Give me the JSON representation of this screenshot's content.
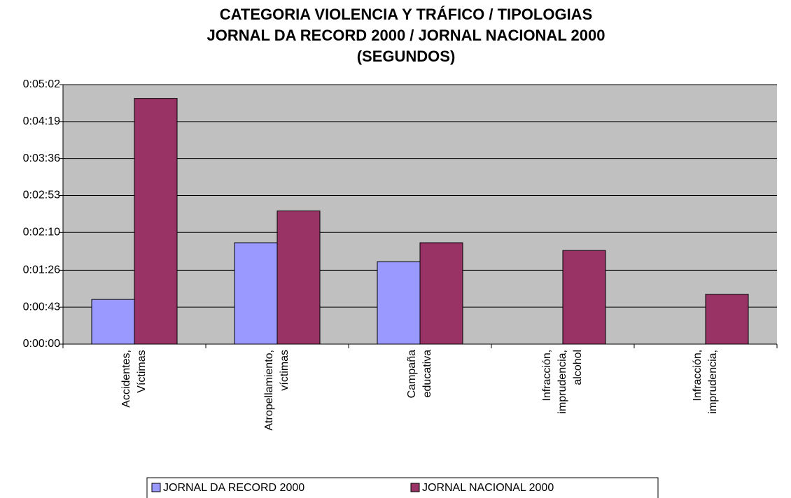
{
  "chart_data": {
    "type": "bar",
    "title": [
      "CATEGORIA VIOLENCIA Y TRÁFICO / TIPOLOGIAS",
      "JORNAL DA RECORD 2000 / JORNAL NACIONAL 2000",
      "(SEGUNDOS)"
    ],
    "categories": [
      "Accidentes, Víctimas",
      "Atropellamiento, víctimas",
      "Campaña educativa",
      "Infracción, imprudencia, alcohol",
      "Infracción, imprudencia,"
    ],
    "series": [
      {
        "name": "JORNAL DA RECORD 2000",
        "color": "#9999ff",
        "values": [
          52,
          118,
          96,
          0,
          0
        ]
      },
      {
        "name": "JORNAL NACIONAL 2000",
        "color": "#993366",
        "values": [
          286,
          155,
          118,
          109,
          58
        ]
      }
    ],
    "ylim": [
      0,
      302
    ],
    "yticks": [
      {
        "value": 0,
        "label": "0:00:00"
      },
      {
        "value": 43,
        "label": "0:00:43"
      },
      {
        "value": 86,
        "label": "0:01:26"
      },
      {
        "value": 130,
        "label": "0:02:10"
      },
      {
        "value": 173,
        "label": "0:02:53"
      },
      {
        "value": 216,
        "label": "0:03:36"
      },
      {
        "value": 259,
        "label": "0:04:19"
      },
      {
        "value": 302,
        "label": "0:05:02"
      }
    ],
    "grid": true,
    "legend": "bottom"
  }
}
